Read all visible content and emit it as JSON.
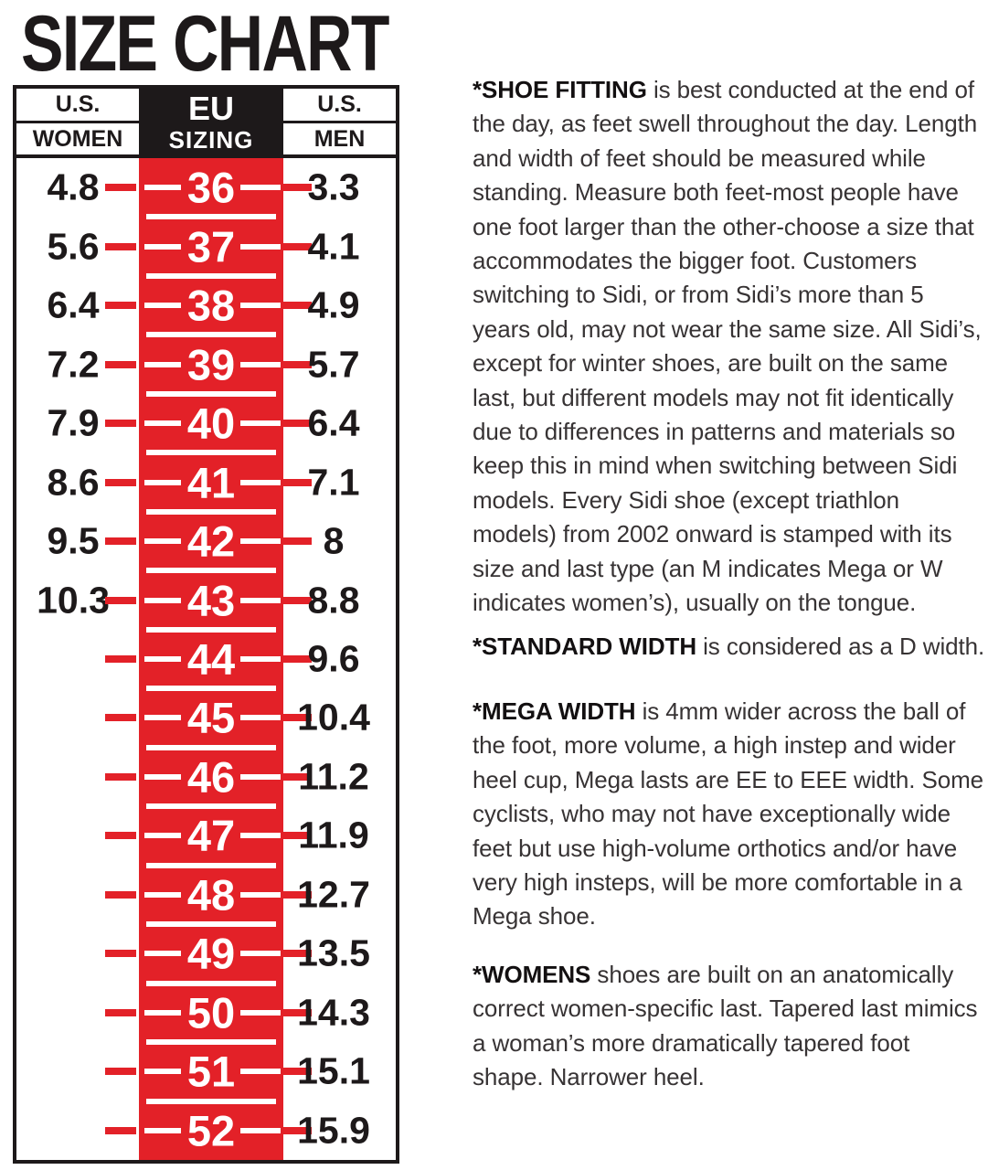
{
  "title": "SIZE CHART",
  "colors": {
    "red": "#E32128",
    "black": "#1D191A",
    "body_text": "#373334",
    "eu_header_text": "#FFFFFF"
  },
  "table": {
    "header": {
      "women_top": "U.S.",
      "women_bottom": "WOMEN",
      "eu_top": "EU",
      "eu_bottom": "SIZING",
      "men_top": "U.S.",
      "men_bottom": "MEN"
    },
    "rows": [
      {
        "women": "4.8",
        "eu": "36",
        "men": "3.3"
      },
      {
        "women": "5.6",
        "eu": "37",
        "men": "4.1"
      },
      {
        "women": "6.4",
        "eu": "38",
        "men": "4.9"
      },
      {
        "women": "7.2",
        "eu": "39",
        "men": "5.7"
      },
      {
        "women": "7.9",
        "eu": "40",
        "men": "6.4"
      },
      {
        "women": "8.6",
        "eu": "41",
        "men": "7.1"
      },
      {
        "women": "9.5",
        "eu": "42",
        "men": "8"
      },
      {
        "women": "10.3",
        "eu": "43",
        "men": "8.8"
      },
      {
        "women": "",
        "eu": "44",
        "men": "9.6"
      },
      {
        "women": "",
        "eu": "45",
        "men": "10.4"
      },
      {
        "women": "",
        "eu": "46",
        "men": "11.2"
      },
      {
        "women": "",
        "eu": "47",
        "men": "11.9"
      },
      {
        "women": "",
        "eu": "48",
        "men": "12.7"
      },
      {
        "women": "",
        "eu": "49",
        "men": "13.5"
      },
      {
        "women": "",
        "eu": "50",
        "men": "14.3"
      },
      {
        "women": "",
        "eu": "51",
        "men": "15.1"
      },
      {
        "women": "",
        "eu": "52",
        "men": "15.9"
      }
    ]
  },
  "notes": [
    {
      "lead": "*SHOE FITTING",
      "lines": [
        "is best conducted at the end of",
        "the day, as feet swell throughout the day. Length",
        "and width of feet should be measured while",
        "standing. Measure both feet-most people have",
        "one foot larger than the other-choose a size that",
        "accommodates the bigger foot. Customers",
        "switching to Sidi, or from Sidi’s more than 5",
        "years old, may not wear the same size. All Sidi’s,",
        "except for winter shoes, are built on the same",
        "last, but different models may not fit identically",
        "due to differences in patterns and materials so",
        "keep this in mind when switching between Sidi",
        "models. Every Sidi shoe (except triathlon",
        "models) from 2002 onward is stamped with its",
        "size and last type (an M indicates Mega or W",
        "indicates women’s), usually on the tongue."
      ]
    },
    {
      "lead": "*STANDARD WIDTH",
      "lines": [
        "is considered as a D width."
      ]
    },
    {
      "lead": "*MEGA WIDTH",
      "lines": [
        "is 4mm wider across the ball of",
        "the foot, more volume, a high instep and wider",
        "heel cup, Mega lasts are EE to EEE width. Some",
        "cyclists, who may not have exceptionally wide",
        "feet but use high-volume orthotics and/or have",
        "very high insteps, will be more comfortable in a",
        "Mega shoe."
      ]
    },
    {
      "lead": "*WOMENS",
      "lines": [
        "shoes are built on an anatomically",
        "correct women-specific last. Tapered last mimics",
        "a woman’s more dramatically tapered foot",
        "shape. Narrower heel."
      ]
    }
  ],
  "chart_data": {
    "type": "table",
    "title": "SIZE CHART",
    "columns": [
      "U.S. WOMEN",
      "EU SIZING",
      "U.S. MEN"
    ],
    "rows": [
      [
        4.8,
        36,
        3.3
      ],
      [
        5.6,
        37,
        4.1
      ],
      [
        6.4,
        38,
        4.9
      ],
      [
        7.2,
        39,
        5.7
      ],
      [
        7.9,
        40,
        6.4
      ],
      [
        8.6,
        41,
        7.1
      ],
      [
        9.5,
        42,
        8
      ],
      [
        10.3,
        43,
        8.8
      ],
      [
        null,
        44,
        9.6
      ],
      [
        null,
        45,
        10.4
      ],
      [
        null,
        46,
        11.2
      ],
      [
        null,
        47,
        11.9
      ],
      [
        null,
        48,
        12.7
      ],
      [
        null,
        49,
        13.5
      ],
      [
        null,
        50,
        14.3
      ],
      [
        null,
        51,
        15.1
      ],
      [
        null,
        52,
        15.9
      ]
    ]
  }
}
